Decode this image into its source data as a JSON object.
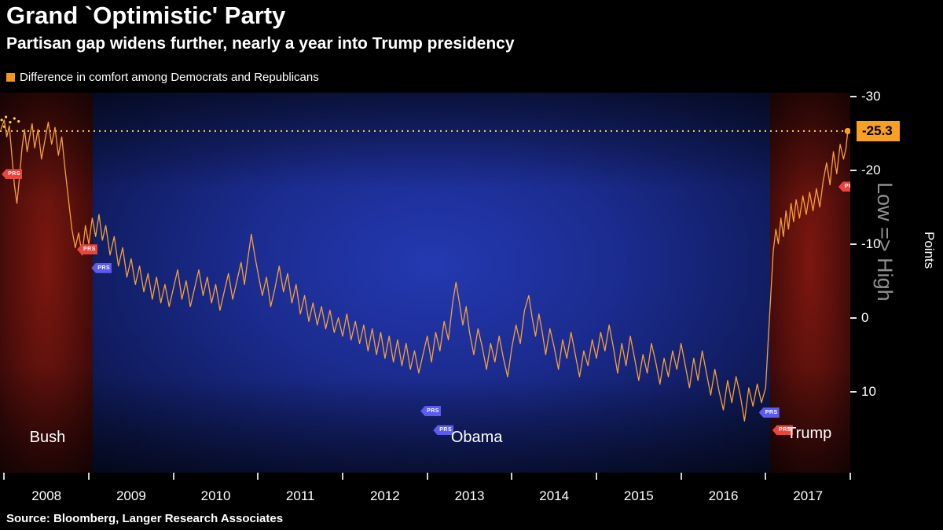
{
  "header": {
    "title": "Grand `Optimistic' Party",
    "subtitle": "Partisan gap widens further, nearly a year into Trump presidency",
    "legend_label": "Difference in comfort among Democrats and Republicans",
    "legend_color": "#f7941d"
  },
  "right_axis": {
    "scale_hint": "Low => High",
    "axis_title": "Points",
    "current_value_label": "-25.3"
  },
  "footer": {
    "source": "Source: Bloomberg, Langer Research Associates"
  },
  "chart_data": {
    "type": "line",
    "title": "Difference in comfort among Democrats and Republicans",
    "xlabel": "",
    "ylabel": "Points",
    "y_axis_inverted": true,
    "xlim": [
      2007.95,
      2018.0
    ],
    "ylim_top": -30.5,
    "ylim_bottom": 21,
    "y_ticks": [
      -30,
      -20,
      -10,
      0,
      10
    ],
    "x_ticks": [
      2008,
      2009,
      2010,
      2011,
      2012,
      2013,
      2014,
      2015,
      2016,
      2017
    ],
    "x_boundaries": [
      2008,
      2009,
      2010,
      2011,
      2012,
      2013,
      2014,
      2015,
      2016,
      2017,
      2018
    ],
    "line_color": "#f6a13a",
    "threshold": {
      "value": -25.3,
      "label": "-25.3",
      "color": "#ffd43a",
      "style": "dotted"
    },
    "zones": [
      {
        "start": 2007.95,
        "end": 2009.05,
        "color": "red",
        "label": "Bush"
      },
      {
        "start": 2009.05,
        "end": 2017.05,
        "color": "blue",
        "label": "Obama"
      },
      {
        "start": 2017.05,
        "end": 2018.0,
        "color": "red",
        "label": "Trump"
      }
    ],
    "era_labels": [
      {
        "text": "Bush",
        "x": 2008.3,
        "y": 16.3
      },
      {
        "text": "Obama",
        "x": 2013.28,
        "y": 16.3
      },
      {
        "text": "Trump",
        "x": 2017.25,
        "y": 15.8
      }
    ],
    "flags": [
      {
        "color": "red",
        "label": "PRS",
        "x": 2007.97,
        "y": -19.5
      },
      {
        "color": "red",
        "label": "PRS",
        "x": 2008.86,
        "y": -9.3
      },
      {
        "color": "blue",
        "label": "PRS",
        "x": 2009.03,
        "y": -6.8
      },
      {
        "color": "blue",
        "label": "PRS",
        "x": 2012.92,
        "y": 12.6
      },
      {
        "color": "blue",
        "label": "PRS",
        "x": 2013.07,
        "y": 15.2
      },
      {
        "color": "blue",
        "label": "PRS",
        "x": 2016.92,
        "y": 12.8
      },
      {
        "color": "red",
        "label": "PRS",
        "x": 2017.08,
        "y": 15.2
      },
      {
        "color": "red",
        "label": "PRS",
        "x": 2017.86,
        "y": -17.8
      }
    ],
    "sparkle_dots": [
      [
        2007.97,
        -26.8
      ],
      [
        2008.02,
        -27.2
      ],
      [
        2008.07,
        -26.5
      ],
      [
        2008.12,
        -27.0
      ],
      [
        2008.0,
        -25.9
      ],
      [
        2008.17,
        -26.6
      ]
    ],
    "series": [
      {
        "name": "Difference in comfort among Democrats and Republicans",
        "points": [
          [
            2007.96,
            -25.5
          ],
          [
            2008.0,
            -26.8
          ],
          [
            2008.03,
            -24.5
          ],
          [
            2008.06,
            -26.0
          ],
          [
            2008.09,
            -22.0
          ],
          [
            2008.12,
            -18.0
          ],
          [
            2008.15,
            -15.5
          ],
          [
            2008.18,
            -19.0
          ],
          [
            2008.21,
            -23.0
          ],
          [
            2008.24,
            -25.5
          ],
          [
            2008.27,
            -22.5
          ],
          [
            2008.3,
            -24.5
          ],
          [
            2008.33,
            -26.3
          ],
          [
            2008.36,
            -23.0
          ],
          [
            2008.4,
            -25.5
          ],
          [
            2008.44,
            -21.5
          ],
          [
            2008.48,
            -24.0
          ],
          [
            2008.52,
            -26.5
          ],
          [
            2008.56,
            -23.5
          ],
          [
            2008.6,
            -25.8
          ],
          [
            2008.64,
            -22.0
          ],
          [
            2008.68,
            -24.5
          ],
          [
            2008.72,
            -20.0
          ],
          [
            2008.76,
            -16.0
          ],
          [
            2008.8,
            -12.0
          ],
          [
            2008.84,
            -9.5
          ],
          [
            2008.88,
            -11.5
          ],
          [
            2008.92,
            -8.5
          ],
          [
            2008.96,
            -12.5
          ],
          [
            2009.0,
            -10.0
          ],
          [
            2009.04,
            -13.5
          ],
          [
            2009.08,
            -11.0
          ],
          [
            2009.12,
            -14.0
          ],
          [
            2009.16,
            -10.5
          ],
          [
            2009.2,
            -12.5
          ],
          [
            2009.25,
            -8.5
          ],
          [
            2009.3,
            -11.0
          ],
          [
            2009.35,
            -7.0
          ],
          [
            2009.4,
            -9.5
          ],
          [
            2009.45,
            -5.5
          ],
          [
            2009.5,
            -8.0
          ],
          [
            2009.55,
            -4.5
          ],
          [
            2009.6,
            -7.0
          ],
          [
            2009.65,
            -3.5
          ],
          [
            2009.7,
            -6.0
          ],
          [
            2009.75,
            -2.5
          ],
          [
            2009.8,
            -5.5
          ],
          [
            2009.85,
            -2.0
          ],
          [
            2009.9,
            -4.5
          ],
          [
            2009.95,
            -1.5
          ],
          [
            2010.0,
            -4.0
          ],
          [
            2010.05,
            -6.5
          ],
          [
            2010.1,
            -2.5
          ],
          [
            2010.15,
            -5.0
          ],
          [
            2010.2,
            -1.5
          ],
          [
            2010.25,
            -4.0
          ],
          [
            2010.3,
            -6.5
          ],
          [
            2010.35,
            -3.0
          ],
          [
            2010.4,
            -5.5
          ],
          [
            2010.45,
            -2.0
          ],
          [
            2010.5,
            -4.5
          ],
          [
            2010.55,
            -1.0
          ],
          [
            2010.6,
            -3.5
          ],
          [
            2010.65,
            -6.0
          ],
          [
            2010.7,
            -2.5
          ],
          [
            2010.75,
            -5.0
          ],
          [
            2010.8,
            -7.5
          ],
          [
            2010.84,
            -4.5
          ],
          [
            2010.88,
            -8.0
          ],
          [
            2010.92,
            -11.3
          ],
          [
            2010.96,
            -8.5
          ],
          [
            2011.0,
            -6.0
          ],
          [
            2011.05,
            -3.0
          ],
          [
            2011.1,
            -5.5
          ],
          [
            2011.15,
            -1.5
          ],
          [
            2011.2,
            -4.0
          ],
          [
            2011.25,
            -7.0
          ],
          [
            2011.3,
            -3.5
          ],
          [
            2011.35,
            -6.0
          ],
          [
            2011.4,
            -2.0
          ],
          [
            2011.45,
            -4.5
          ],
          [
            2011.5,
            -0.5
          ],
          [
            2011.55,
            -3.0
          ],
          [
            2011.6,
            0.5
          ],
          [
            2011.65,
            -2.0
          ],
          [
            2011.7,
            1.0
          ],
          [
            2011.75,
            -1.5
          ],
          [
            2011.8,
            1.5
          ],
          [
            2011.85,
            -1.0
          ],
          [
            2011.9,
            2.0
          ],
          [
            2011.95,
            0.0
          ],
          [
            2012.0,
            2.5
          ],
          [
            2012.05,
            -0.5
          ],
          [
            2012.1,
            3.0
          ],
          [
            2012.15,
            0.5
          ],
          [
            2012.2,
            3.5
          ],
          [
            2012.25,
            1.0
          ],
          [
            2012.3,
            4.5
          ],
          [
            2012.35,
            1.5
          ],
          [
            2012.4,
            5.0
          ],
          [
            2012.45,
            2.0
          ],
          [
            2012.5,
            5.5
          ],
          [
            2012.55,
            2.5
          ],
          [
            2012.6,
            6.0
          ],
          [
            2012.65,
            3.0
          ],
          [
            2012.7,
            6.5
          ],
          [
            2012.75,
            3.5
          ],
          [
            2012.8,
            7.0
          ],
          [
            2012.85,
            4.5
          ],
          [
            2012.9,
            7.5
          ],
          [
            2012.95,
            5.0
          ],
          [
            2013.0,
            2.5
          ],
          [
            2013.05,
            6.0
          ],
          [
            2013.1,
            2.0
          ],
          [
            2013.15,
            4.5
          ],
          [
            2013.2,
            0.5
          ],
          [
            2013.25,
            3.0
          ],
          [
            2013.3,
            -2.0
          ],
          [
            2013.34,
            -4.8
          ],
          [
            2013.38,
            -2.0
          ],
          [
            2013.42,
            1.0
          ],
          [
            2013.46,
            -1.5
          ],
          [
            2013.5,
            2.0
          ],
          [
            2013.55,
            5.0
          ],
          [
            2013.6,
            1.5
          ],
          [
            2013.65,
            4.0
          ],
          [
            2013.7,
            7.0
          ],
          [
            2013.75,
            3.5
          ],
          [
            2013.8,
            6.0
          ],
          [
            2013.85,
            2.5
          ],
          [
            2013.9,
            5.5
          ],
          [
            2013.95,
            8.0
          ],
          [
            2014.0,
            4.0
          ],
          [
            2014.05,
            1.0
          ],
          [
            2014.1,
            3.5
          ],
          [
            2014.15,
            -1.0
          ],
          [
            2014.2,
            -3.0
          ],
          [
            2014.24,
            0.0
          ],
          [
            2014.28,
            2.5
          ],
          [
            2014.32,
            -0.5
          ],
          [
            2014.36,
            2.0
          ],
          [
            2014.4,
            5.0
          ],
          [
            2014.45,
            1.5
          ],
          [
            2014.5,
            4.0
          ],
          [
            2014.55,
            7.0
          ],
          [
            2014.6,
            3.0
          ],
          [
            2014.65,
            5.5
          ],
          [
            2014.7,
            2.0
          ],
          [
            2014.75,
            5.0
          ],
          [
            2014.8,
            8.0
          ],
          [
            2014.85,
            4.5
          ],
          [
            2014.9,
            6.5
          ],
          [
            2014.95,
            3.0
          ],
          [
            2015.0,
            5.5
          ],
          [
            2015.05,
            2.0
          ],
          [
            2015.1,
            4.5
          ],
          [
            2015.15,
            1.0
          ],
          [
            2015.2,
            4.0
          ],
          [
            2015.25,
            7.5
          ],
          [
            2015.3,
            3.5
          ],
          [
            2015.35,
            6.5
          ],
          [
            2015.4,
            2.5
          ],
          [
            2015.45,
            5.5
          ],
          [
            2015.5,
            8.5
          ],
          [
            2015.55,
            5.0
          ],
          [
            2015.6,
            7.5
          ],
          [
            2015.65,
            3.5
          ],
          [
            2015.7,
            6.0
          ],
          [
            2015.75,
            9.0
          ],
          [
            2015.8,
            5.5
          ],
          [
            2015.85,
            8.0
          ],
          [
            2015.9,
            4.5
          ],
          [
            2015.95,
            7.0
          ],
          [
            2016.0,
            3.5
          ],
          [
            2016.05,
            6.5
          ],
          [
            2016.1,
            9.5
          ],
          [
            2016.15,
            5.5
          ],
          [
            2016.2,
            8.5
          ],
          [
            2016.25,
            4.5
          ],
          [
            2016.3,
            7.5
          ],
          [
            2016.35,
            10.5
          ],
          [
            2016.4,
            7.0
          ],
          [
            2016.45,
            10.0
          ],
          [
            2016.5,
            12.5
          ],
          [
            2016.55,
            8.5
          ],
          [
            2016.6,
            11.5
          ],
          [
            2016.65,
            8.0
          ],
          [
            2016.7,
            10.5
          ],
          [
            2016.75,
            14.0
          ],
          [
            2016.8,
            9.5
          ],
          [
            2016.85,
            12.0
          ],
          [
            2016.9,
            9.0
          ],
          [
            2016.95,
            11.5
          ],
          [
            2017.0,
            9.5
          ],
          [
            2017.03,
            3.0
          ],
          [
            2017.06,
            -3.0
          ],
          [
            2017.09,
            -9.0
          ],
          [
            2017.12,
            -12.0
          ],
          [
            2017.15,
            -10.0
          ],
          [
            2017.18,
            -13.5
          ],
          [
            2017.21,
            -11.0
          ],
          [
            2017.24,
            -14.5
          ],
          [
            2017.27,
            -12.0
          ],
          [
            2017.3,
            -15.5
          ],
          [
            2017.33,
            -13.0
          ],
          [
            2017.36,
            -16.0
          ],
          [
            2017.4,
            -13.5
          ],
          [
            2017.44,
            -16.5
          ],
          [
            2017.48,
            -14.0
          ],
          [
            2017.52,
            -17.0
          ],
          [
            2017.56,
            -14.5
          ],
          [
            2017.6,
            -17.5
          ],
          [
            2017.64,
            -15.0
          ],
          [
            2017.68,
            -18.5
          ],
          [
            2017.72,
            -21.0
          ],
          [
            2017.76,
            -18.0
          ],
          [
            2017.8,
            -22.5
          ],
          [
            2017.84,
            -19.5
          ],
          [
            2017.88,
            -23.5
          ],
          [
            2017.92,
            -21.5
          ],
          [
            2017.95,
            -23.0
          ],
          [
            2017.97,
            -25.3
          ]
        ]
      }
    ]
  }
}
